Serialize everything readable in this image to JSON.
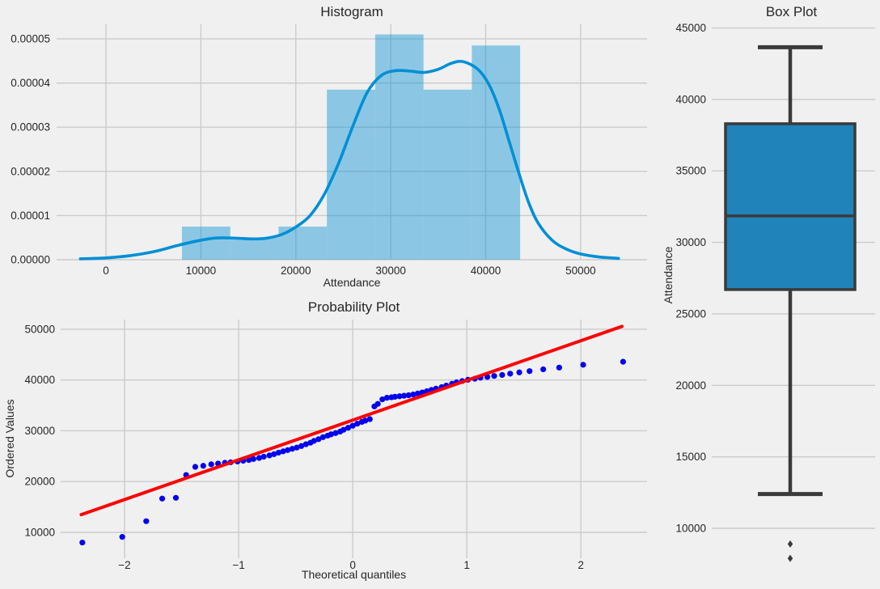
{
  "figure": {
    "background": "#f0f0f0",
    "grid_color": "#cbcbcb",
    "text_color": "#262626"
  },
  "chart_data": [
    {
      "type": "histogram",
      "title": "Histogram",
      "xlabel": "Attendance",
      "ylabel": "",
      "bar_color": "rgba(0,143,213,0.42)",
      "kde_color": "#008fd5",
      "xlim": [
        -5200,
        57000
      ],
      "ylim": [
        0,
        5.33e-05
      ],
      "grid": true,
      "xtick_values": [
        0,
        10000,
        20000,
        30000,
        40000,
        50000
      ],
      "xtick_labels": [
        "0",
        "10000",
        "20000",
        "30000",
        "40000",
        "50000"
      ],
      "ytick_values": [
        0,
        1e-05,
        2e-05,
        3e-05,
        4e-05,
        5e-05
      ],
      "ytick_labels": [
        "0.00000",
        "0.00001",
        "0.00002",
        "0.00003",
        "0.00004",
        "0.00005"
      ],
      "bin_edges": [
        8000,
        13090,
        18180,
        23270,
        28360,
        33450,
        38540,
        43630
      ],
      "densities": [
        7.5e-06,
        5e-06,
        7.5e-06,
        3.85e-05,
        5.1e-05,
        3.85e-05,
        4.85e-05
      ],
      "kde_x": [
        -2700,
        0,
        2500,
        5000,
        7500,
        9500,
        11500,
        13500,
        15500,
        17000,
        18500,
        20000,
        21500,
        23000,
        24500,
        26000,
        27500,
        29000,
        30500,
        32000,
        33500,
        35000,
        36300,
        37400,
        38500,
        39500,
        40500,
        41500,
        42500,
        43500,
        44500,
        45500,
        47000,
        48500,
        50000,
        52000,
        54000
      ],
      "kde_y": [
        2e-07,
        4e-07,
        9e-07,
        1.8e-06,
        3.2e-06,
        4.2e-06,
        4.9e-06,
        4.9e-06,
        4.7e-06,
        4.9e-06,
        5.7e-06,
        7.4e-06,
        1e-05,
        1.48e-05,
        2.18e-05,
        3.02e-05,
        3.78e-05,
        4.17e-05,
        4.28e-05,
        4.27e-05,
        4.24e-05,
        4.31e-05,
        4.44e-05,
        4.49e-05,
        4.41e-05,
        4.24e-05,
        3.9e-05,
        3.36e-05,
        2.66e-05,
        1.96e-05,
        1.31e-05,
        8.4e-06,
        4.4e-06,
        2.4e-06,
        1.3e-06,
        6e-07,
        3e-07
      ]
    },
    {
      "type": "scatter",
      "title": "Probability Plot",
      "xlabel": "Theoretical quantiles",
      "ylabel": "Ordered Values",
      "dot_color": "#0000ee",
      "line_color": "#ff0000",
      "xlim": [
        -2.56,
        2.58
      ],
      "ylim": [
        4900,
        51900
      ],
      "grid": true,
      "xtick_values": [
        -2,
        -1,
        0,
        1,
        2
      ],
      "xtick_labels": [
        "−2",
        "−1",
        "0",
        "1",
        "2"
      ],
      "ytick_values": [
        10000,
        20000,
        30000,
        40000,
        50000
      ],
      "ytick_labels": [
        "10000",
        "20000",
        "30000",
        "40000",
        "50000"
      ],
      "points_x": [
        -2.37,
        -2.02,
        -1.81,
        -1.67,
        -1.55,
        -1.46,
        -1.38,
        -1.31,
        -1.24,
        -1.18,
        -1.12,
        -1.07,
        -1.01,
        -0.96,
        -0.91,
        -0.87,
        -0.82,
        -0.78,
        -0.73,
        -0.69,
        -0.65,
        -0.61,
        -0.57,
        -0.53,
        -0.49,
        -0.45,
        -0.41,
        -0.37,
        -0.34,
        -0.3,
        -0.26,
        -0.22,
        -0.19,
        -0.15,
        -0.11,
        -0.08,
        -0.04,
        0,
        0.04,
        0.08,
        0.11,
        0.15,
        0.19,
        0.22,
        0.26,
        0.3,
        0.34,
        0.37,
        0.41,
        0.45,
        0.49,
        0.53,
        0.57,
        0.61,
        0.65,
        0.69,
        0.73,
        0.78,
        0.82,
        0.87,
        0.91,
        0.96,
        1.01,
        1.07,
        1.12,
        1.18,
        1.24,
        1.31,
        1.38,
        1.46,
        1.55,
        1.67,
        1.81,
        2.02,
        2.37
      ],
      "points_y": [
        8000,
        9100,
        12200,
        16650,
        16800,
        21300,
        22900,
        23100,
        23400,
        23550,
        23700,
        23800,
        23950,
        24100,
        24250,
        24450,
        24650,
        24900,
        25150,
        25400,
        25700,
        25950,
        26200,
        26450,
        26700,
        27000,
        27350,
        27650,
        28000,
        28350,
        28750,
        29050,
        29300,
        29550,
        29850,
        30200,
        30600,
        31000,
        31400,
        31750,
        32000,
        32300,
        34800,
        35300,
        36200,
        36500,
        36600,
        36700,
        36800,
        36900,
        37000,
        37150,
        37350,
        37550,
        37800,
        38050,
        38300,
        38600,
        38900,
        39250,
        39550,
        39800,
        40050,
        40250,
        40450,
        40600,
        40800,
        41000,
        41250,
        41500,
        41750,
        42100,
        42450,
        43000,
        43600
      ],
      "fit_line": {
        "slope": 7820,
        "intercept": 32100,
        "x_start": -2.38,
        "x_end": 2.36
      }
    },
    {
      "type": "box",
      "title": "Box Plot",
      "xlabel": "",
      "ylabel": "Attendance",
      "box_color": "#2083b9",
      "edge_color": "#3a3a3a",
      "ylim": [
        7000,
        45200
      ],
      "grid": true,
      "ytick_values": [
        10000,
        15000,
        20000,
        25000,
        30000,
        35000,
        40000,
        45000
      ],
      "ytick_labels": [
        "10000",
        "15000",
        "20000",
        "25000",
        "30000",
        "35000",
        "40000",
        "45000"
      ],
      "stats": {
        "whislo": 12400,
        "q1": 26700,
        "med": 31850,
        "q3": 38300,
        "whishi": 43650,
        "outliers": [
          8900,
          7900
        ]
      }
    }
  ]
}
